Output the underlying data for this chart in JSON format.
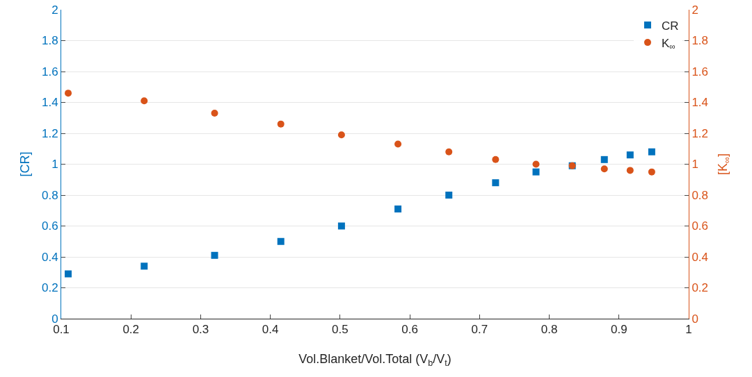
{
  "chart_data": {
    "type": "scatter",
    "xlabel": "Vol.Blanket/Vol.Total (V$_{b}$/V$_{t}$)",
    "ylabel": "[CR]",
    "y2label": "[K$_{∞}$]",
    "x": [
      0.11,
      0.219,
      0.32,
      0.415,
      0.502,
      0.583,
      0.656,
      0.723,
      0.781,
      0.833,
      0.879,
      0.916,
      0.947
    ],
    "series": [
      {
        "name": "CR",
        "color": "#0072bd",
        "marker": "square",
        "values": [
          0.29,
          0.34,
          0.41,
          0.5,
          0.6,
          0.71,
          0.8,
          0.88,
          0.95,
          0.99,
          1.03,
          1.06,
          1.08
        ]
      },
      {
        "name": "K$_{∞}$",
        "color": "#d95319",
        "marker": "circle",
        "axis": "y2",
        "values": [
          1.46,
          1.41,
          1.33,
          1.26,
          1.19,
          1.13,
          1.08,
          1.03,
          1.0,
          0.99,
          0.97,
          0.96,
          0.95
        ]
      }
    ],
    "xlim": [
      0.1,
      1
    ],
    "xticks": [
      0.1,
      0.2,
      0.3,
      0.4,
      0.5,
      0.6,
      0.7,
      0.8,
      0.9,
      1
    ],
    "ylim": [
      0,
      2
    ],
    "yticks": [
      0,
      0.2,
      0.4,
      0.6,
      0.8,
      1,
      1.2,
      1.4,
      1.6,
      1.8,
      2
    ],
    "y2lim": [
      0,
      2
    ],
    "y2ticks": [
      0,
      0.2,
      0.4,
      0.6,
      0.8,
      1,
      1.2,
      1.4,
      1.6,
      1.8,
      2
    ],
    "grid": "y",
    "legend": "top right"
  }
}
